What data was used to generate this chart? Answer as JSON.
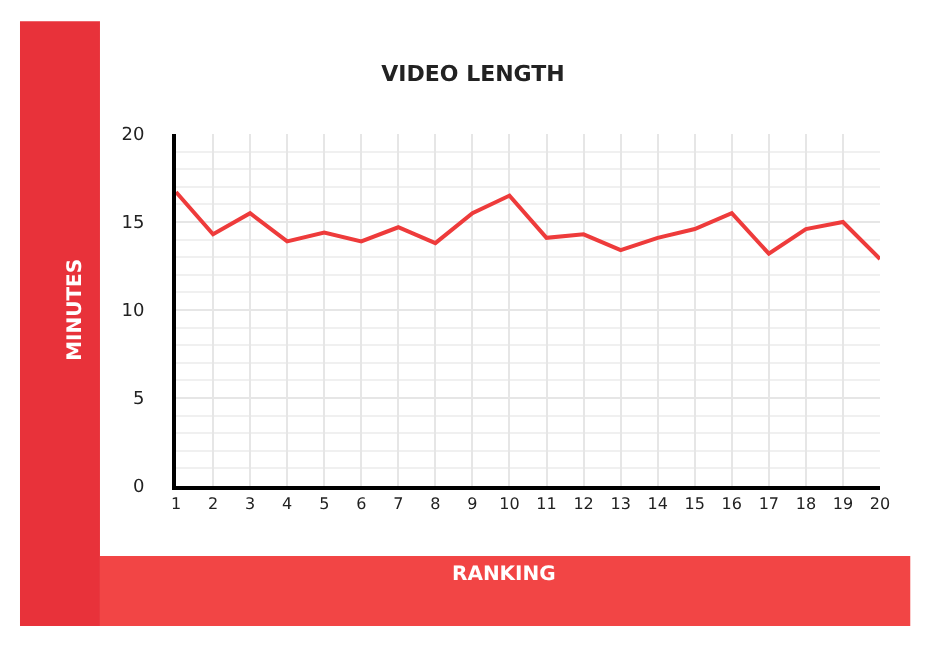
{
  "chart_data": {
    "type": "line",
    "title": "VIDEO LENGTH",
    "xlabel": "RANKING",
    "ylabel": "MINUTES",
    "x": [
      1,
      2,
      3,
      4,
      5,
      6,
      7,
      8,
      9,
      10,
      11,
      12,
      13,
      14,
      15,
      16,
      17,
      18,
      19,
      20
    ],
    "series": [
      {
        "color": "#ee3b3b",
        "values": [
          16.7,
          14.3,
          15.5,
          13.9,
          14.4,
          13.9,
          14.7,
          13.8,
          15.5,
          16.5,
          14.1,
          14.3,
          13.4,
          14.1,
          14.6,
          15.5,
          13.2,
          14.6,
          15.0,
          12.9
        ]
      }
    ],
    "xlim": [
      1,
      20
    ],
    "xticks": [
      1,
      2,
      3,
      4,
      5,
      6,
      7,
      8,
      9,
      10,
      11,
      12,
      13,
      14,
      15,
      16,
      17,
      18,
      19,
      20
    ],
    "ylim": [
      0,
      20
    ],
    "yticks": [
      0,
      5,
      10,
      15,
      20
    ],
    "grid": true,
    "marker": "none",
    "line_style": "solid"
  }
}
